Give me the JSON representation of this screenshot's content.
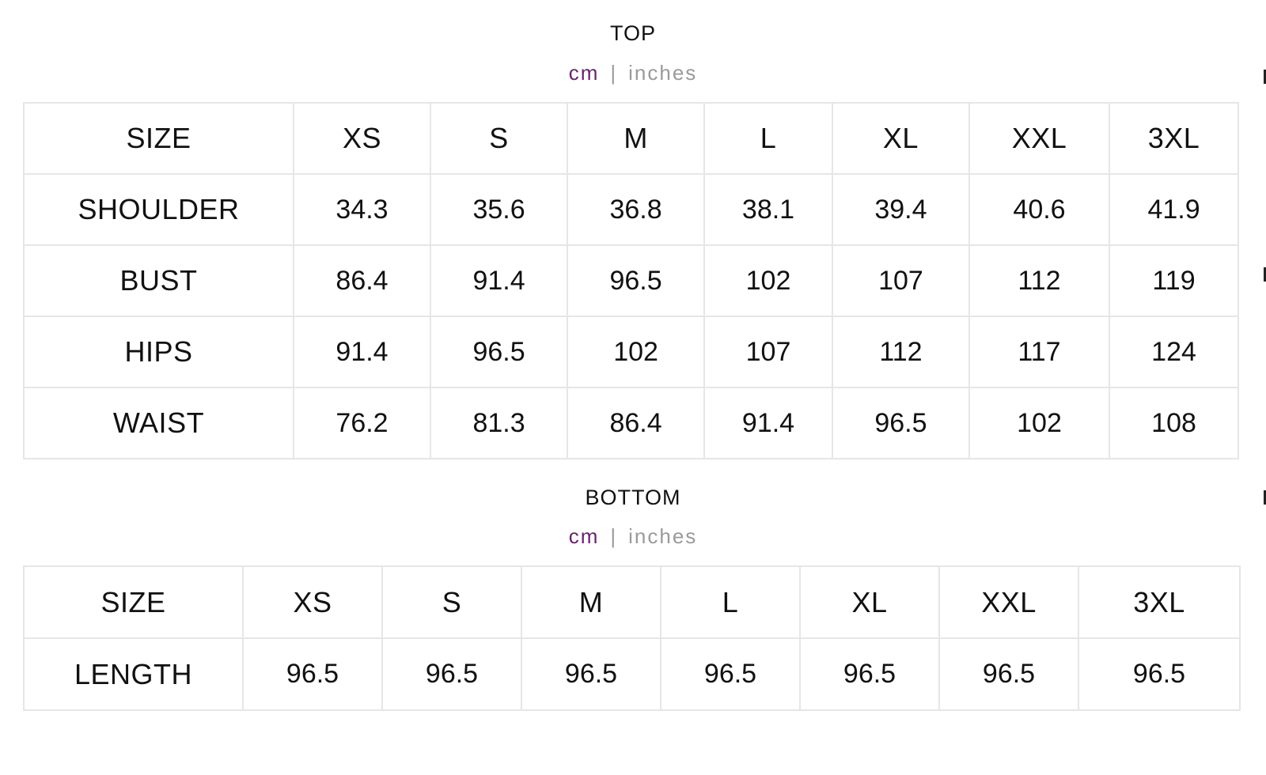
{
  "top": {
    "title": "TOP",
    "units": {
      "cm": "cm",
      "separator": "|",
      "inches": "inches"
    },
    "header": [
      "SIZE",
      "XS",
      "S",
      "M",
      "L",
      "XL",
      "XXL",
      "3XL"
    ],
    "rows": [
      [
        "SHOULDER",
        "34.3",
        "35.6",
        "36.8",
        "38.1",
        "39.4",
        "40.6",
        "41.9"
      ],
      [
        "BUST",
        "86.4",
        "91.4",
        "96.5",
        "102",
        "107",
        "112",
        "119"
      ],
      [
        "HIPS",
        "91.4",
        "96.5",
        "102",
        "107",
        "112",
        "117",
        "124"
      ],
      [
        "WAIST",
        "76.2",
        "81.3",
        "86.4",
        "91.4",
        "96.5",
        "102",
        "108"
      ]
    ]
  },
  "bottom": {
    "title": "BOTTOM",
    "units": {
      "cm": "cm",
      "separator": "|",
      "inches": "inches"
    },
    "header": [
      "SIZE",
      "XS",
      "S",
      "M",
      "L",
      "XL",
      "XXL",
      "3XL"
    ],
    "rows": [
      [
        "LENGTH",
        "96.5",
        "96.5",
        "96.5",
        "96.5",
        "96.5",
        "96.5",
        "96.5"
      ]
    ]
  },
  "colors": {
    "active_unit": "#6b1f6e",
    "inactive_unit": "#9a9a9a",
    "grid": "#e6e6e6",
    "text": "#111111"
  }
}
